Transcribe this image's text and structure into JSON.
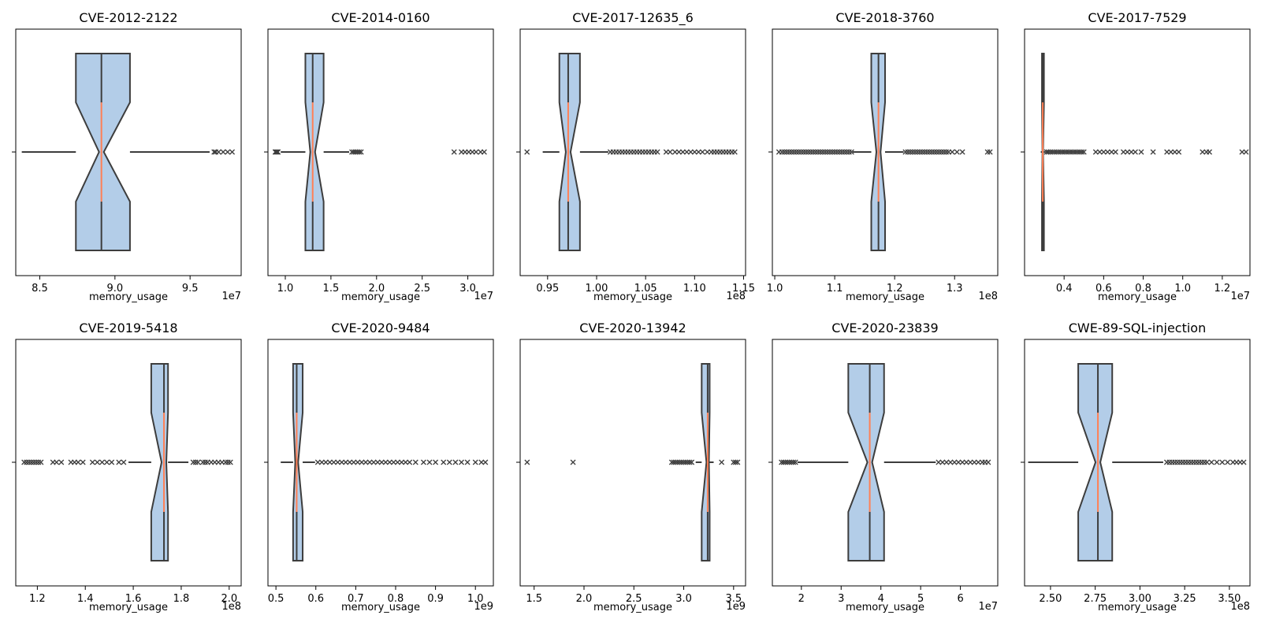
{
  "chart_data": [
    {
      "type": "boxplot",
      "title": "CVE-2012-2122",
      "xlabel": "memory_usage",
      "exponent": "1e7",
      "tick_values": [
        8.5,
        9.0,
        9.5
      ],
      "tick_labels": [
        "8.5",
        "9.0",
        "9.5"
      ],
      "xlim": [
        8.34,
        9.84
      ],
      "whisker_low": 8.38,
      "q1": 8.74,
      "median": 8.91,
      "q3": 9.1,
      "whisker_high": 9.63,
      "outliers": [
        9.66,
        9.67,
        9.69,
        9.72,
        9.75,
        9.78
      ]
    },
    {
      "type": "boxplot",
      "title": "CVE-2014-0160",
      "xlabel": "memory_usage",
      "exponent": "1e7",
      "tick_values": [
        1.0,
        1.5,
        2.0,
        2.5,
        3.0
      ],
      "tick_labels": [
        "1.0",
        "1.5",
        "2.0",
        "2.5",
        "3.0"
      ],
      "xlim": [
        0.81,
        3.28
      ],
      "whisker_low": 0.95,
      "q1": 1.22,
      "median": 1.3,
      "q3": 1.42,
      "whisker_high": 1.7,
      "outliers": [
        0.89,
        0.9,
        0.91,
        0.92,
        1.73,
        1.75,
        1.77,
        1.79,
        1.81,
        1.83,
        2.85,
        2.93,
        2.97,
        3.01,
        3.05,
        3.09,
        3.14,
        3.18
      ]
    },
    {
      "type": "boxplot",
      "title": "CVE-2017-12635_6",
      "xlabel": "memory_usage",
      "exponent": "1e8",
      "tick_values": [
        0.95,
        1.0,
        1.05,
        1.1,
        1.15
      ],
      "tick_labels": [
        "0.95",
        "1.00",
        "1.05",
        "1.10",
        "1.15"
      ],
      "xlim": [
        0.922,
        1.152
      ],
      "whisker_low": 0.945,
      "q1": 0.962,
      "median": 0.971,
      "q3": 0.983,
      "whisker_high": 1.012,
      "outliers": [
        0.929,
        1.014,
        1.017,
        1.02,
        1.023,
        1.026,
        1.029,
        1.032,
        1.035,
        1.038,
        1.041,
        1.044,
        1.047,
        1.05,
        1.053,
        1.056,
        1.059,
        1.062,
        1.071,
        1.075,
        1.08,
        1.084,
        1.088,
        1.092,
        1.096,
        1.1,
        1.104,
        1.108,
        1.113,
        1.117,
        1.12,
        1.123,
        1.126,
        1.129,
        1.132,
        1.135,
        1.138,
        1.141
      ]
    },
    {
      "type": "boxplot",
      "title": "CVE-2018-3760",
      "xlabel": "memory_usage",
      "exponent": "1e8",
      "tick_values": [
        1.0,
        1.1,
        1.2,
        1.3
      ],
      "tick_labels": [
        "1.0",
        "1.1",
        "1.2",
        "1.3"
      ],
      "xlim": [
        0.996,
        1.372
      ],
      "whisker_low": 1.13,
      "q1": 1.161,
      "median": 1.173,
      "q3": 1.184,
      "whisker_high": 1.215,
      "outliers": [
        1.007,
        1.012,
        1.016,
        1.02,
        1.024,
        1.028,
        1.032,
        1.036,
        1.04,
        1.044,
        1.048,
        1.052,
        1.056,
        1.06,
        1.064,
        1.068,
        1.072,
        1.076,
        1.08,
        1.084,
        1.088,
        1.092,
        1.096,
        1.1,
        1.104,
        1.108,
        1.112,
        1.116,
        1.12,
        1.124,
        1.128,
        1.218,
        1.222,
        1.226,
        1.23,
        1.234,
        1.238,
        1.242,
        1.246,
        1.25,
        1.254,
        1.258,
        1.262,
        1.266,
        1.27,
        1.274,
        1.278,
        1.282,
        1.286,
        1.29,
        1.296,
        1.304,
        1.313,
        1.355,
        1.359
      ]
    },
    {
      "type": "boxplot",
      "title": "CVE-2017-7529",
      "xlabel": "memory_usage",
      "exponent": "1e7",
      "tick_values": [
        0.4,
        0.6,
        0.8,
        1.0,
        1.2
      ],
      "tick_labels": [
        "0.4",
        "0.6",
        "0.8",
        "1.0",
        "1.2"
      ],
      "xlim": [
        0.2,
        1.34
      ],
      "whisker_low": 0.282,
      "q1": 0.288,
      "median": 0.292,
      "q3": 0.298,
      "whisker_high": 0.306,
      "outliers": [
        0.312,
        0.32,
        0.33,
        0.34,
        0.35,
        0.36,
        0.37,
        0.38,
        0.39,
        0.4,
        0.41,
        0.42,
        0.43,
        0.44,
        0.45,
        0.46,
        0.47,
        0.48,
        0.49,
        0.5,
        0.56,
        0.58,
        0.6,
        0.62,
        0.64,
        0.66,
        0.7,
        0.72,
        0.74,
        0.76,
        0.79,
        0.85,
        0.92,
        0.94,
        0.96,
        0.98,
        1.1,
        1.12,
        1.135,
        1.3,
        1.32
      ]
    },
    {
      "type": "boxplot",
      "title": "CVE-2019-5418",
      "xlabel": "memory_usage",
      "exponent": "1e8",
      "tick_values": [
        1.2,
        1.4,
        1.6,
        1.8,
        2.0
      ],
      "tick_labels": [
        "1.2",
        "1.4",
        "1.6",
        "1.8",
        "2.0"
      ],
      "xlim": [
        1.11,
        2.05
      ],
      "whisker_low": 1.58,
      "q1": 1.675,
      "median": 1.728,
      "q3": 1.745,
      "whisker_high": 1.83,
      "outliers": [
        1.145,
        1.155,
        1.165,
        1.175,
        1.185,
        1.195,
        1.205,
        1.215,
        1.265,
        1.28,
        1.3,
        1.34,
        1.355,
        1.37,
        1.39,
        1.43,
        1.45,
        1.47,
        1.49,
        1.51,
        1.54,
        1.56,
        1.85,
        1.86,
        1.87,
        1.89,
        1.9,
        1.91,
        1.925,
        1.94,
        1.955,
        1.97,
        1.985,
        1.995,
        2.005
      ]
    },
    {
      "type": "boxplot",
      "title": "CVE-2020-9484",
      "xlabel": "memory_usage",
      "exponent": "1e9",
      "tick_values": [
        0.5,
        0.6,
        0.7,
        0.8,
        0.9,
        1.0
      ],
      "tick_labels": [
        "0.5",
        "0.6",
        "0.7",
        "0.8",
        "0.9",
        "1.0"
      ],
      "xlim": [
        0.48,
        1.045
      ],
      "whisker_low": 0.512,
      "q1": 0.543,
      "median": 0.552,
      "q3": 0.567,
      "whisker_high": 0.598,
      "outliers": [
        0.605,
        0.615,
        0.625,
        0.635,
        0.645,
        0.655,
        0.665,
        0.675,
        0.685,
        0.695,
        0.705,
        0.715,
        0.725,
        0.735,
        0.745,
        0.755,
        0.765,
        0.775,
        0.785,
        0.795,
        0.805,
        0.815,
        0.825,
        0.835,
        0.85,
        0.87,
        0.885,
        0.9,
        0.92,
        0.935,
        0.95,
        0.965,
        0.98,
        1.0,
        1.015,
        1.025
      ]
    },
    {
      "type": "boxplot",
      "title": "CVE-2020-13942",
      "xlabel": "memory_usage",
      "exponent": "1e9",
      "tick_values": [
        1.5,
        2.0,
        2.5,
        3.0,
        3.5
      ],
      "tick_labels": [
        "1.5",
        "2.0",
        "2.5",
        "3.0",
        "3.5"
      ],
      "xlim": [
        1.36,
        3.62
      ],
      "whisker_low": 3.12,
      "q1": 3.18,
      "median": 3.24,
      "q3": 3.26,
      "whisker_high": 3.3,
      "outliers": [
        1.43,
        1.89,
        2.88,
        2.9,
        2.92,
        2.94,
        2.96,
        2.98,
        3.0,
        3.02,
        3.04,
        3.06,
        3.08,
        3.38,
        3.5,
        3.52,
        3.54
      ]
    },
    {
      "type": "boxplot",
      "title": "CVE-2020-23839",
      "xlabel": "memory_usage",
      "exponent": "1e7",
      "tick_values": [
        2,
        3,
        4,
        5,
        6
      ],
      "tick_labels": [
        "2",
        "3",
        "4",
        "5",
        "6"
      ],
      "xlim": [
        1.27,
        6.94
      ],
      "whisker_low": 1.9,
      "q1": 3.18,
      "median": 3.72,
      "q3": 4.08,
      "whisker_high": 5.38,
      "outliers": [
        1.5,
        1.55,
        1.6,
        1.65,
        1.7,
        1.75,
        1.8,
        1.85,
        5.45,
        5.55,
        5.65,
        5.75,
        5.85,
        5.95,
        6.05,
        6.15,
        6.25,
        6.35,
        6.45,
        6.55,
        6.62,
        6.7
      ]
    },
    {
      "type": "boxplot",
      "title": "CWE-89-SQL-injection",
      "xlabel": "memory_usage",
      "exponent": "1e8",
      "tick_values": [
        2.5,
        2.75,
        3.0,
        3.25,
        3.5
      ],
      "tick_labels": [
        "2.50",
        "2.75",
        "3.00",
        "3.25",
        "3.50"
      ],
      "xlim": [
        2.355,
        3.615
      ],
      "whisker_low": 2.375,
      "q1": 2.655,
      "median": 2.765,
      "q3": 2.845,
      "whisker_high": 3.13,
      "outliers": [
        3.15,
        3.165,
        3.18,
        3.195,
        3.21,
        3.225,
        3.24,
        3.255,
        3.27,
        3.285,
        3.3,
        3.315,
        3.33,
        3.345,
        3.36,
        3.375,
        3.4,
        3.43,
        3.46,
        3.49,
        3.52,
        3.54,
        3.56,
        3.58
      ]
    }
  ]
}
